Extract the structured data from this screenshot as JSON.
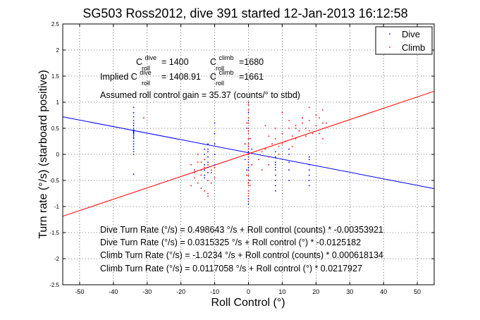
{
  "chart_data": {
    "type": "scatter",
    "title": "SG503 Ross2012, dive 391 started 12-Jan-2013 16:12:58",
    "xlabel": "Roll Control (°)",
    "ylabel": "Turn rate (°/s) (starboard positive)",
    "xlim": [
      -55,
      55
    ],
    "ylim": [
      -2.5,
      2.5
    ],
    "xticks": [
      -50,
      -40,
      -30,
      -20,
      -10,
      0,
      10,
      20,
      30,
      40,
      50
    ],
    "yticks": [
      -2.5,
      -2,
      -1.5,
      -1,
      -0.5,
      0,
      0.5,
      1,
      1.5,
      2,
      2.5
    ],
    "grid": true,
    "legend_position": "top-right",
    "legend": [
      {
        "name": "Dive",
        "color": "#0000ff"
      },
      {
        "name": "Climb",
        "color": "#ff0000"
      }
    ],
    "annotations": {
      "c_dive_label": "C",
      "c_dive_sup": "dive",
      "c_dive_sub": "roll",
      "c_dive_value": "= 1400",
      "c_climb_label": "C",
      "c_climb_sup": "climb",
      "c_climb_sub": "roll",
      "c_climb_value": "=1680",
      "implied_prefix": "Implied C",
      "implied_dive_sup": "dive",
      "implied_dive_sub": "roll",
      "implied_dive_value": "= 1408.91",
      "implied_climb_label": "C",
      "implied_climb_sup": "climb",
      "implied_climb_sub": "roll",
      "implied_climb_value": "=1661",
      "gain": "Assumed roll control gain = 35.37 (counts/° to stbd)",
      "fit1": "Dive Turn Rate (°/s) = 0.498643 °/s + Roll control (counts) * -0.00353921",
      "fit2": "Dive Turn Rate (°/s) = 0.0315325 °/s + Roll control (°) * -0.0125182",
      "fit3": "Climb Turn Rate (°/s) = -1.0234 °/s + Roll control (counts) * 0.000618134",
      "fit4": "Climb Turn Rate (°/s) = 0.0117058 °/s + Roll control (°) * 0.0217927"
    },
    "series": [
      {
        "name": "Dive",
        "color": "#0000ff",
        "fit": {
          "intercept": 0.0315325,
          "slope": -0.0125182
        },
        "x": [
          -34,
          -34,
          -34,
          -34,
          -34,
          -34,
          -34,
          -34,
          -34,
          -34,
          -34,
          -34,
          -34,
          -34,
          -34,
          -34,
          -34,
          -34,
          -34,
          -34,
          -34,
          -34,
          -13,
          -13,
          -13,
          -13,
          -13,
          -13,
          -13,
          -12,
          -12,
          -12,
          -12,
          -12,
          -12,
          -12,
          -10,
          -10,
          -10,
          -10,
          -10,
          -1,
          -1,
          -0.5,
          -0.5,
          0,
          0,
          0,
          0,
          0,
          0,
          0,
          0,
          0,
          0,
          0,
          0,
          0,
          0,
          0,
          0,
          0.5,
          0.5,
          1,
          1,
          8,
          8,
          8,
          8,
          8,
          8,
          8,
          8,
          8,
          8,
          12,
          12,
          12,
          12,
          12,
          18,
          18,
          18,
          18,
          18,
          18,
          18
        ],
        "y": [
          0.9,
          0.8,
          0.72,
          0.65,
          0.6,
          0.55,
          0.5,
          0.47,
          0.45,
          0.43,
          0.41,
          0.39,
          0.36,
          0.33,
          0.3,
          0.25,
          0.2,
          0.15,
          0.1,
          0.05,
          0.0,
          -0.38,
          0.1,
          0.0,
          -0.1,
          -0.2,
          -0.3,
          -0.4,
          -0.45,
          0.2,
          0.1,
          0.05,
          -0.05,
          -0.15,
          -0.25,
          -0.35,
          0.6,
          0.4,
          0.2,
          0.0,
          -0.2,
          0.2,
          -0.1,
          0.5,
          -0.3,
          1.0,
          0.8,
          0.6,
          0.45,
          0.3,
          0.15,
          0.05,
          -0.05,
          -0.15,
          -0.25,
          -0.4,
          -0.55,
          -0.7,
          -0.85,
          -0.95,
          0.65,
          0.3,
          -0.5,
          0.1,
          -0.2,
          0.05,
          -0.05,
          -0.15,
          -0.2,
          -0.25,
          -0.3,
          -0.4,
          -0.5,
          -0.6,
          -0.7,
          0.1,
          0.0,
          -0.15,
          -0.3,
          -0.5,
          -0.05,
          -0.1,
          -0.2,
          -0.3,
          -0.4,
          -0.5,
          -0.6
        ]
      },
      {
        "name": "Climb",
        "color": "#ff0000",
        "fit": {
          "intercept": 0.0117058,
          "slope": 0.0217927
        },
        "x": [
          -17,
          -16,
          -15,
          -14,
          -13,
          -12,
          -11,
          -10,
          -17,
          -15,
          -14,
          -13,
          -12,
          -11,
          -16,
          -14,
          -12,
          -10,
          -13,
          -15,
          -11,
          -12,
          -14,
          -16,
          -1,
          -0.5,
          0,
          0,
          0,
          0,
          0,
          0,
          0,
          0,
          0,
          0,
          0,
          0,
          0,
          0,
          0,
          0,
          0,
          0,
          0,
          0,
          0,
          0.5,
          1,
          -0.5,
          0,
          0,
          0.5,
          0,
          3,
          4,
          5,
          6,
          7,
          8,
          9,
          10,
          11,
          12,
          13,
          14,
          15,
          16,
          17,
          18,
          19,
          20,
          21,
          22,
          23,
          4,
          6,
          8,
          10,
          12,
          14,
          16,
          18,
          20,
          22,
          6,
          10,
          14,
          18,
          22,
          9,
          13,
          17,
          21,
          5,
          -31
        ],
        "y": [
          -0.2,
          -0.35,
          -0.15,
          -0.4,
          -0.25,
          -0.5,
          -0.3,
          -0.45,
          -0.6,
          -0.55,
          -0.3,
          -0.7,
          -0.2,
          -0.35,
          -0.45,
          -0.65,
          -0.75,
          -0.25,
          -0.1,
          0.0,
          -0.55,
          -0.8,
          -0.15,
          -0.3,
          0.2,
          -0.4,
          1.0,
          0.85,
          0.7,
          0.6,
          0.5,
          0.4,
          0.3,
          0.2,
          0.1,
          0.0,
          -0.1,
          -0.2,
          -0.3,
          -0.4,
          -0.5,
          -0.6,
          -0.7,
          -0.8,
          -0.9,
          -0.75,
          0.95,
          0.3,
          -0.2,
          0.6,
          -0.55,
          0.15,
          -0.6,
          0.45,
          -0.1,
          0.05,
          0.1,
          -0.05,
          0.2,
          0.3,
          0.15,
          0.4,
          0.25,
          0.5,
          0.35,
          0.55,
          0.45,
          0.6,
          0.5,
          0.65,
          0.4,
          0.55,
          0.7,
          0.3,
          0.6,
          -0.3,
          0.35,
          0.5,
          0.8,
          0.65,
          0.5,
          0.7,
          0.9,
          0.75,
          0.6,
          -0.2,
          0.2,
          0.3,
          0.45,
          0.85,
          0.0,
          0.15,
          0.35,
          0.4,
          0.55,
          0.7
        ]
      }
    ]
  }
}
